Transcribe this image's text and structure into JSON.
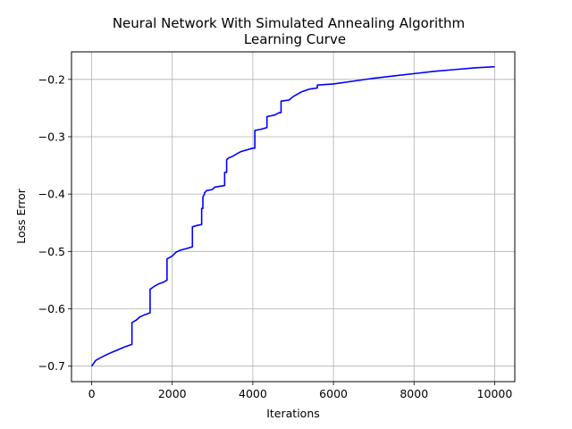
{
  "chart_data": {
    "type": "line",
    "title": "Neural Network With Simulated Annealing Algorithm",
    "subtitle": "Learning Curve",
    "xlabel": "Iterations",
    "ylabel": "Loss Error",
    "xlim": [
      -500,
      10500
    ],
    "ylim": [
      -0.727,
      -0.152
    ],
    "xticks": [
      0,
      2000,
      4000,
      6000,
      8000,
      10000
    ],
    "xtick_labels": [
      "0",
      "2000",
      "4000",
      "6000",
      "8000",
      "10000"
    ],
    "yticks": [
      -0.7,
      -0.6,
      -0.5,
      -0.4,
      -0.3,
      -0.2
    ],
    "ytick_labels": [
      "−0.7",
      "−0.6",
      "−0.5",
      "−0.4",
      "−0.3",
      "−0.2"
    ],
    "grid": true,
    "line_color": "#0000ff",
    "series": [
      {
        "x": [
          0,
          100,
          200,
          400,
          600,
          800,
          1000,
          1000,
          1100,
          1200,
          1300,
          1450,
          1450,
          1550,
          1650,
          1800,
          1870,
          1870,
          2000,
          2100,
          2200,
          2350,
          2500,
          2500,
          2600,
          2730,
          2730,
          2760,
          2760,
          2800,
          2800,
          2850,
          3000,
          3050,
          3300,
          3300,
          3350,
          3350,
          3400,
          3500,
          3600,
          3700,
          3800,
          4000,
          4050,
          4050,
          4200,
          4350,
          4350,
          4550,
          4650,
          4700,
          4700,
          4900,
          5000,
          5200,
          5400,
          5600,
          5600,
          6000,
          6100,
          6500,
          7000,
          7500,
          8000,
          8500,
          9000,
          9500,
          10000
        ],
        "y": [
          -0.7,
          -0.69,
          -0.686,
          -0.679,
          -0.673,
          -0.667,
          -0.662,
          -0.624,
          -0.62,
          -0.614,
          -0.611,
          -0.607,
          -0.566,
          -0.561,
          -0.557,
          -0.553,
          -0.55,
          -0.513,
          -0.508,
          -0.501,
          -0.498,
          -0.495,
          -0.492,
          -0.457,
          -0.455,
          -0.453,
          -0.425,
          -0.425,
          -0.405,
          -0.4,
          -0.398,
          -0.394,
          -0.392,
          -0.388,
          -0.385,
          -0.362,
          -0.362,
          -0.34,
          -0.337,
          -0.334,
          -0.33,
          -0.326,
          -0.324,
          -0.32,
          -0.32,
          -0.289,
          -0.287,
          -0.284,
          -0.265,
          -0.262,
          -0.258,
          -0.258,
          -0.238,
          -0.236,
          -0.23,
          -0.222,
          -0.217,
          -0.215,
          -0.21,
          -0.208,
          -0.207,
          -0.203,
          -0.198,
          -0.194,
          -0.19,
          -0.186,
          -0.183,
          -0.18,
          -0.178
        ]
      }
    ]
  }
}
